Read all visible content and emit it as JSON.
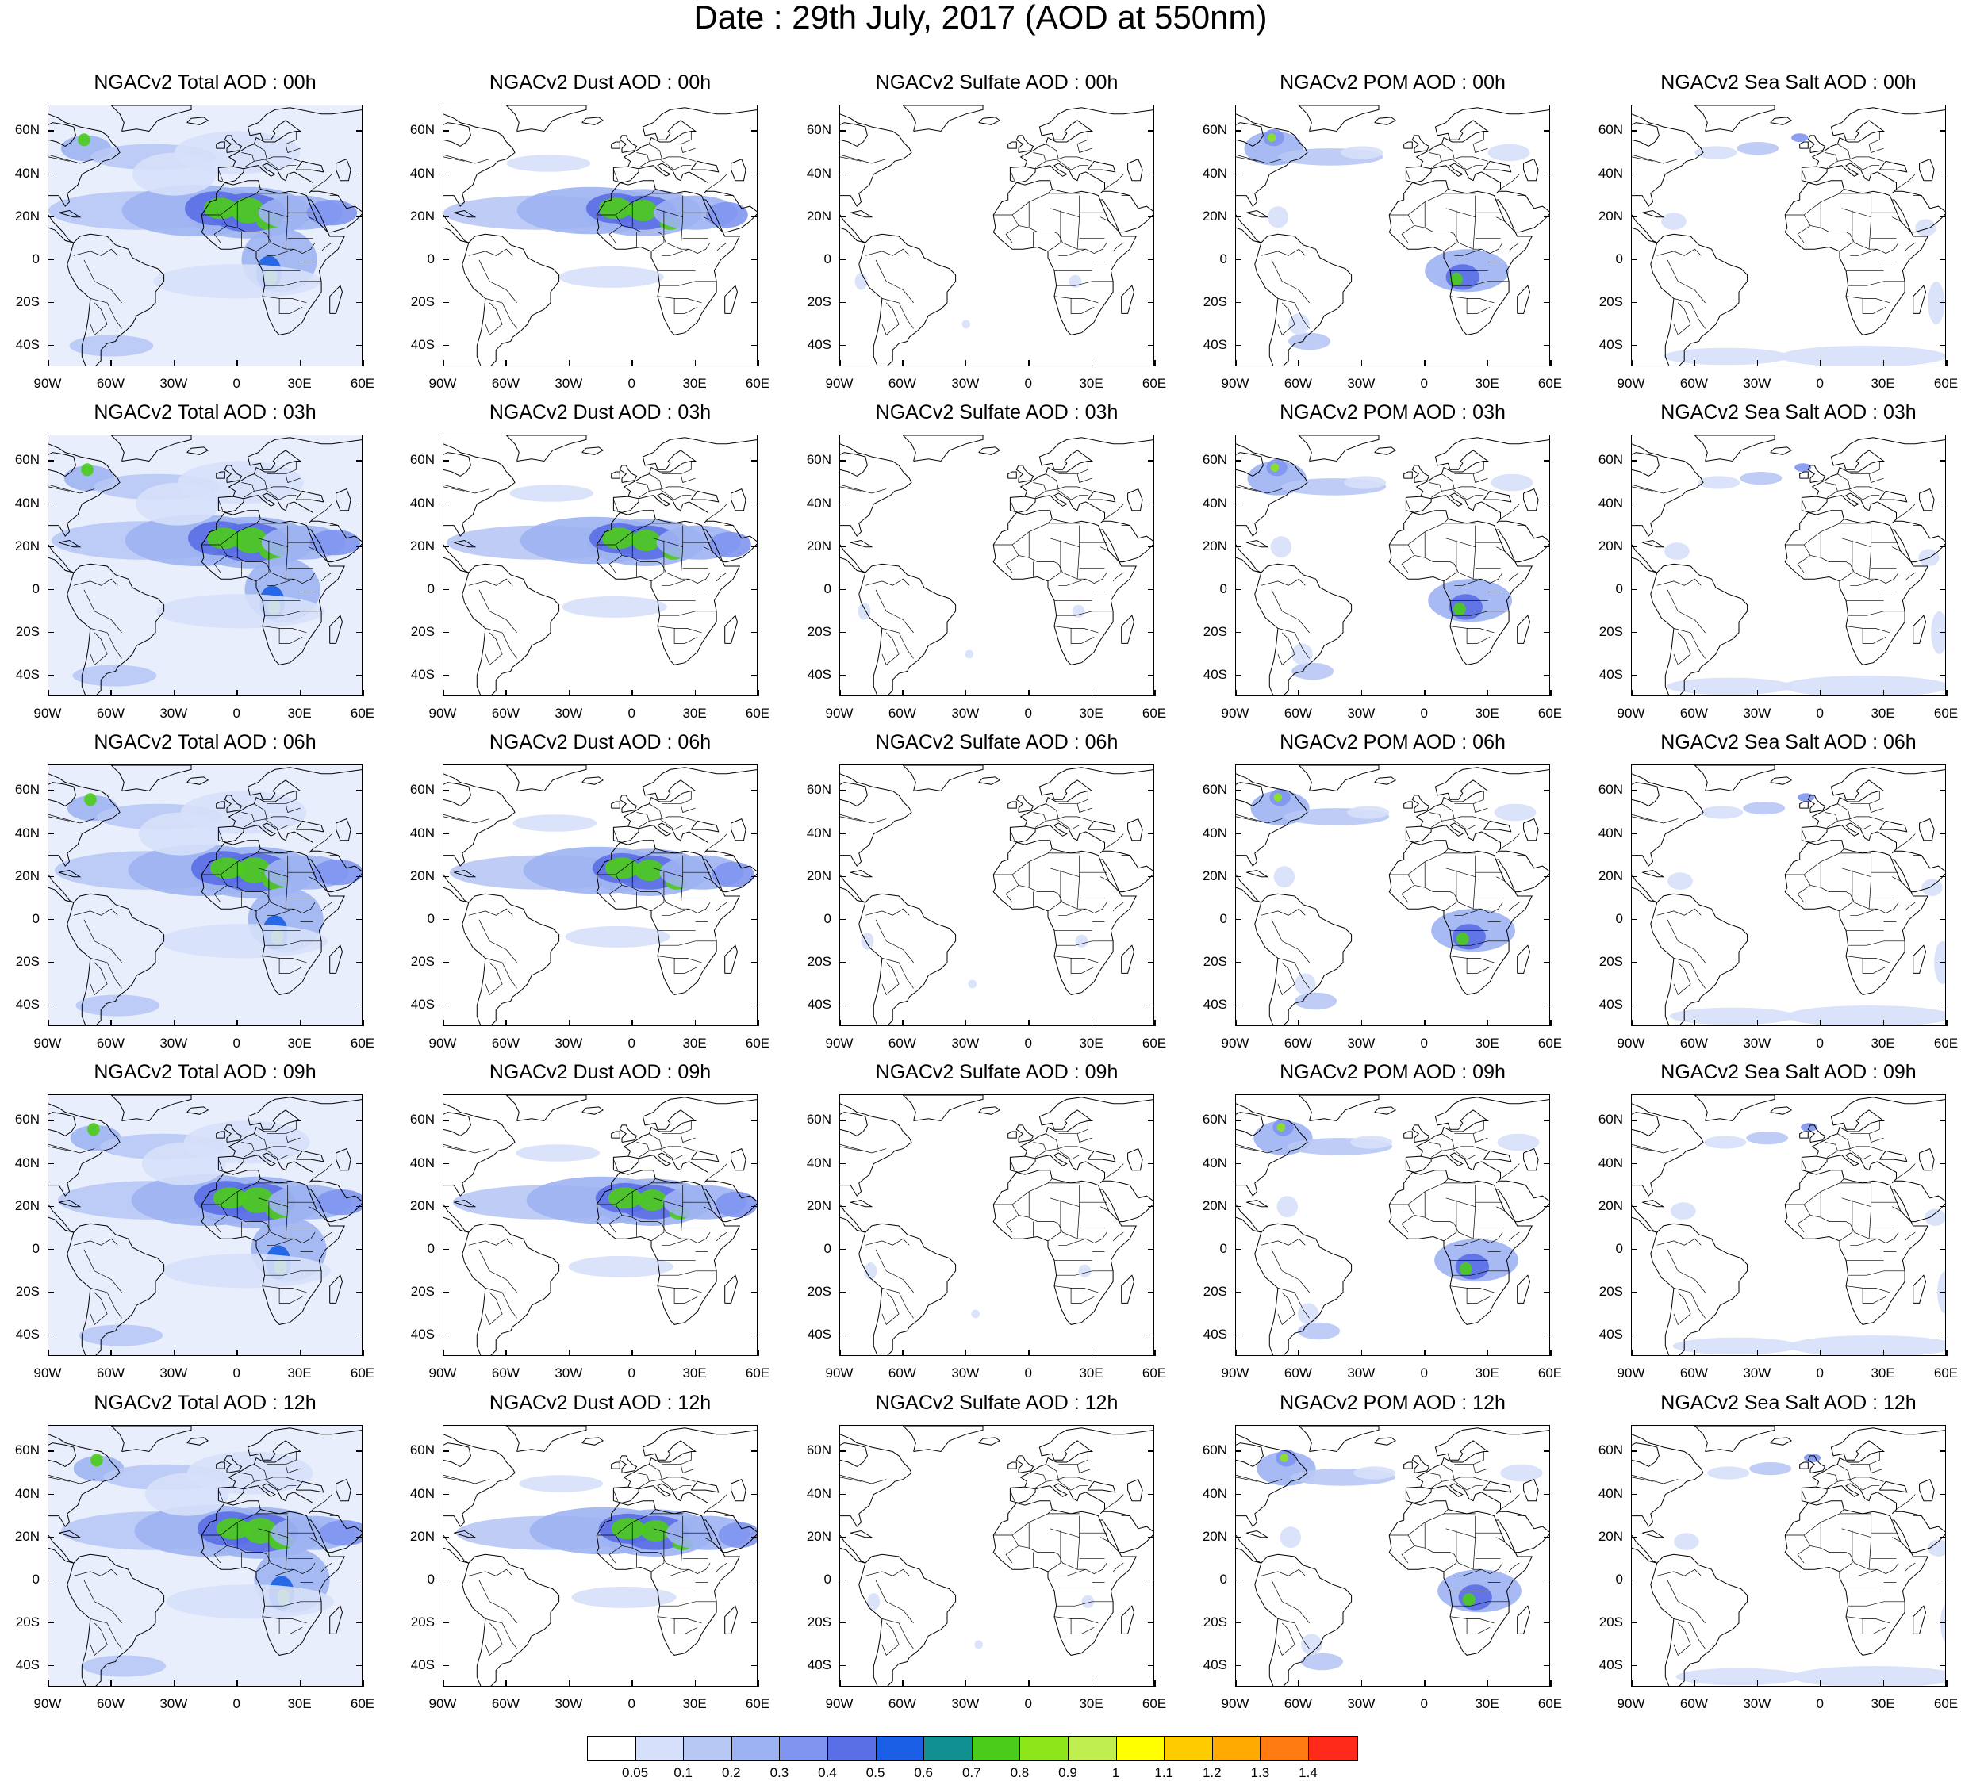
{
  "title": "Date : 29th July, 2017 (AOD at 550nm)",
  "map_extent": {
    "lon_range": [
      -90,
      60
    ],
    "lat_range": [
      -50,
      72
    ]
  },
  "lat_ticks": [
    "60N",
    "40N",
    "20N",
    "0",
    "20S",
    "40S"
  ],
  "lat_values": [
    60,
    40,
    20,
    0,
    -20,
    -40
  ],
  "lon_ticks": [
    "90W",
    "60W",
    "30W",
    "0",
    "30E",
    "60E"
  ],
  "lon_values": [
    -90,
    -60,
    -30,
    0,
    30,
    60
  ],
  "panels": [
    [
      "NGACv2 Total AOD : 00h",
      "NGACv2 Dust AOD : 00h",
      "NGACv2 Sulfate AOD : 00h",
      "NGACv2 POM AOD : 00h",
      "NGACv2 Sea Salt AOD : 00h"
    ],
    [
      "NGACv2 Total AOD : 03h",
      "NGACv2 Dust AOD : 03h",
      "NGACv2 Sulfate AOD : 03h",
      "NGACv2 POM AOD : 03h",
      "NGACv2 Sea Salt AOD : 03h"
    ],
    [
      "NGACv2 Total AOD : 06h",
      "NGACv2 Dust AOD : 06h",
      "NGACv2 Sulfate AOD : 06h",
      "NGACv2 POM AOD : 06h",
      "NGACv2 Sea Salt AOD : 06h"
    ],
    [
      "NGACv2 Total AOD : 09h",
      "NGACv2 Dust AOD : 09h",
      "NGACv2 Sulfate AOD : 09h",
      "NGACv2 POM AOD : 09h",
      "NGACv2 Sea Salt  AOD : 09h"
    ],
    [
      "NGACv2 Total AOD  : 12h",
      "NGACv2 Dust AOD : 12h",
      "NGACv2 Sulfate AOD : 12h",
      "NGACv2 POM  AOD : 12h",
      "NGACv2 Sea Salt  AOD : 12h"
    ]
  ],
  "field_types": [
    "total",
    "dust",
    "sulfate",
    "pom",
    "seasalt"
  ],
  "colorbar": {
    "labels": [
      "0.05",
      "0.1",
      "0.2",
      "0.3",
      "0.4",
      "0.5",
      "0.6",
      "0.7",
      "0.8",
      "0.9",
      "1",
      "1.1",
      "1.2",
      "1.3",
      "1.4"
    ],
    "colors": [
      "#ffffff",
      "#d6e0fa",
      "#b8c8f5",
      "#9db2f2",
      "#8095f0",
      "#5a6ee6",
      "#1a5fe6",
      "#109090",
      "#4ccc1a",
      "#8ce61a",
      "#c0ee50",
      "#ffff00",
      "#ffcc00",
      "#ffaa00",
      "#ff7a10",
      "#ff2a1a"
    ]
  }
}
